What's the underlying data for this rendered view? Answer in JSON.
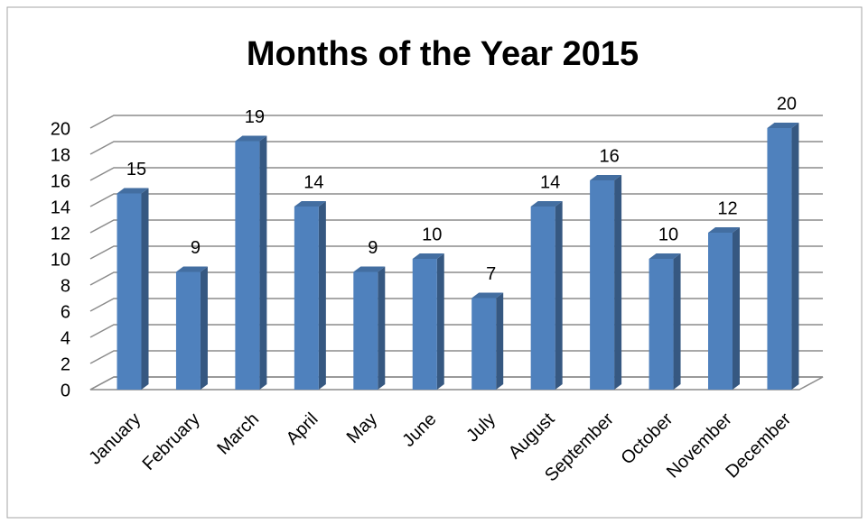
{
  "chart_data": {
    "type": "bar",
    "title": "Months of the Year 2015",
    "categories": [
      "January",
      "February",
      "March",
      "April",
      "May",
      "June",
      "July",
      "August",
      "September",
      "October",
      "November",
      "December"
    ],
    "values": [
      15,
      9,
      19,
      14,
      9,
      10,
      7,
      14,
      16,
      10,
      12,
      20
    ],
    "color": "#4f81bd",
    "ylim": [
      0,
      20
    ],
    "yticks": [
      0,
      2,
      4,
      6,
      8,
      10,
      12,
      14,
      16,
      18,
      20
    ],
    "grid": true
  }
}
